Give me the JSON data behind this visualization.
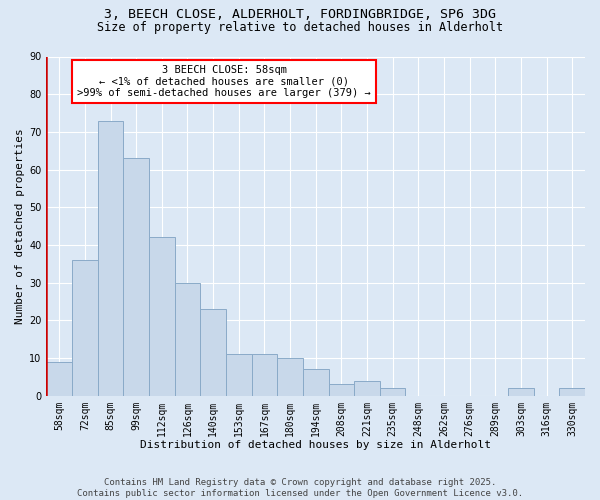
{
  "title_line1": "3, BEECH CLOSE, ALDERHOLT, FORDINGBRIDGE, SP6 3DG",
  "title_line2": "Size of property relative to detached houses in Alderholt",
  "xlabel": "Distribution of detached houses by size in Alderholt",
  "ylabel": "Number of detached properties",
  "categories": [
    "58sqm",
    "72sqm",
    "85sqm",
    "99sqm",
    "112sqm",
    "126sqm",
    "140sqm",
    "153sqm",
    "167sqm",
    "180sqm",
    "194sqm",
    "208sqm",
    "221sqm",
    "235sqm",
    "248sqm",
    "262sqm",
    "276sqm",
    "289sqm",
    "303sqm",
    "316sqm",
    "330sqm"
  ],
  "values": [
    9,
    36,
    73,
    63,
    42,
    30,
    23,
    11,
    11,
    10,
    7,
    3,
    4,
    2,
    0,
    0,
    0,
    0,
    2,
    0,
    2
  ],
  "bar_color": "#c8d8ea",
  "bar_edge_color": "#8aaac8",
  "highlight_color": "#cc0000",
  "highlight_index": 0,
  "annotation_title": "3 BEECH CLOSE: 58sqm",
  "annotation_line2": "← <1% of detached houses are smaller (0)",
  "annotation_line3": ">99% of semi-detached houses are larger (379) →",
  "ylim": [
    0,
    90
  ],
  "yticks": [
    0,
    10,
    20,
    30,
    40,
    50,
    60,
    70,
    80,
    90
  ],
  "background_color": "#dce8f5",
  "plot_bg_color": "#dce8f5",
  "footer": "Contains HM Land Registry data © Crown copyright and database right 2025.\nContains public sector information licensed under the Open Government Licence v3.0.",
  "title_fontsize": 9.5,
  "subtitle_fontsize": 8.5,
  "axis_label_fontsize": 8,
  "tick_fontsize": 7,
  "annotation_fontsize": 7.5,
  "footer_fontsize": 6.5
}
